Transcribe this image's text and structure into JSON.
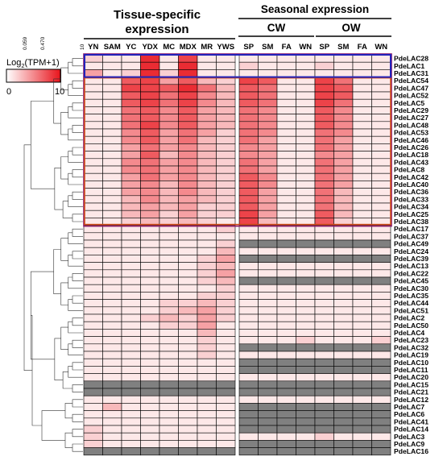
{
  "chart_data": {
    "type": "heatmap",
    "headers": {
      "tissue": [
        "Tissue-specific",
        "expression"
      ],
      "seasonal": "Seasonal expression",
      "cw": "CW",
      "ow": "OW"
    },
    "columns": [
      "YN",
      "SAM",
      "YC",
      "YDX",
      "MC",
      "MDX",
      "MR",
      "YWS",
      "SP",
      "SM",
      "FA",
      "WN",
      "SP",
      "SM",
      "FA",
      "WN"
    ],
    "rows": [
      "PdeLAC28",
      "PdeLAC1",
      "PdeLAC31",
      "PdeLAC54",
      "PdeLAC47",
      "PdeLAC52",
      "PdeLAC5",
      "PdeLAC29",
      "PdeLAC27",
      "PdeLAC48",
      "PdeLAC53",
      "PdeLAC46",
      "PdeLAC26",
      "PdeLAC18",
      "PdeLAC43",
      "PdeLAC8",
      "PdeLAC42",
      "PdeLAC40",
      "PdeLAC36",
      "PdeLAC33",
      "PdeLAC34",
      "PdeLAC25",
      "PdeLAC38",
      "PdeLAC17",
      "PdeLAC37",
      "PdeLAC49",
      "PdeLAC24",
      "PdeLAC39",
      "PdeLAC13",
      "PdeLAC22",
      "PdeLAC45",
      "PdeLAC30",
      "PdeLAC35",
      "PdeLAC44",
      "PdeLAC51",
      "PdeLAC2",
      "PdeLAC50",
      "PdeLAC4",
      "PdeLAC23",
      "PdeLAC32",
      "PdeLAC19",
      "PdeLAC10",
      "PdeLAC11",
      "PdeLAC20",
      "PdeLAC15",
      "PdeLAC21",
      "PdeLAC12",
      "PdeLAC7",
      "PdeLAC6",
      "PdeLAC41",
      "PdeLAC14",
      "PdeLAC3",
      "PdeLAC9",
      "PdeLAC16"
    ],
    "values": [
      [
        2,
        1,
        1,
        9,
        1,
        8,
        1,
        1,
        1,
        1,
        1,
        1,
        1,
        1,
        1,
        1
      ],
      [
        1,
        1,
        1,
        9,
        1,
        9,
        1,
        1,
        2,
        1,
        1,
        1,
        2,
        1,
        1,
        1
      ],
      [
        4,
        1,
        2,
        9,
        2,
        9,
        1,
        1,
        1,
        1,
        1,
        1,
        1,
        1,
        1,
        1
      ],
      [
        1,
        1,
        7,
        8,
        4,
        7,
        3,
        2,
        8,
        7,
        1,
        1,
        8,
        6,
        1,
        1
      ],
      [
        1,
        1,
        8,
        8,
        7,
        9,
        6,
        3,
        7,
        6,
        1,
        1,
        8,
        7,
        1,
        1
      ],
      [
        1,
        1,
        7,
        8,
        6,
        8,
        5,
        3,
        7,
        6,
        1,
        1,
        8,
        7,
        1,
        1
      ],
      [
        1,
        1,
        7,
        8,
        6,
        8,
        5,
        3,
        7,
        6,
        1,
        1,
        8,
        6,
        1,
        1
      ],
      [
        1,
        1,
        6,
        7,
        5,
        7,
        4,
        3,
        6,
        5,
        1,
        1,
        7,
        5,
        1,
        1
      ],
      [
        1,
        1,
        6,
        7,
        5,
        7,
        4,
        3,
        6,
        5,
        1,
        1,
        7,
        5,
        1,
        1
      ],
      [
        1,
        1,
        6,
        8,
        5,
        7,
        4,
        3,
        6,
        5,
        1,
        1,
        7,
        5,
        1,
        1
      ],
      [
        1,
        1,
        5,
        7,
        4,
        6,
        4,
        2,
        6,
        5,
        1,
        1,
        6,
        5,
        1,
        1
      ],
      [
        1,
        1,
        5,
        7,
        4,
        6,
        3,
        2,
        6,
        4,
        1,
        1,
        6,
        4,
        1,
        1
      ],
      [
        1,
        1,
        4,
        6,
        4,
        5,
        3,
        2,
        5,
        4,
        1,
        1,
        6,
        4,
        1,
        1
      ],
      [
        1,
        1,
        4,
        7,
        3,
        5,
        3,
        2,
        5,
        4,
        1,
        1,
        5,
        4,
        1,
        1
      ],
      [
        1,
        1,
        5,
        6,
        4,
        5,
        3,
        2,
        6,
        4,
        1,
        1,
        6,
        4,
        1,
        1
      ],
      [
        1,
        1,
        5,
        6,
        4,
        5,
        3,
        2,
        6,
        4,
        1,
        1,
        6,
        4,
        1,
        1
      ],
      [
        1,
        1,
        4,
        6,
        4,
        5,
        3,
        2,
        7,
        5,
        1,
        1,
        6,
        4,
        1,
        1
      ],
      [
        1,
        1,
        4,
        5,
        3,
        5,
        3,
        2,
        7,
        5,
        1,
        1,
        6,
        4,
        1,
        1
      ],
      [
        1,
        1,
        4,
        5,
        3,
        5,
        3,
        2,
        7,
        4,
        1,
        1,
        6,
        3,
        1,
        1
      ],
      [
        1,
        1,
        3,
        5,
        3,
        4,
        3,
        2,
        7,
        4,
        1,
        1,
        6,
        3,
        1,
        1
      ],
      [
        1,
        1,
        3,
        4,
        3,
        4,
        2,
        2,
        7,
        4,
        1,
        1,
        6,
        3,
        1,
        1
      ],
      [
        1,
        1,
        3,
        4,
        2,
        4,
        2,
        2,
        8,
        4,
        1,
        1,
        7,
        3,
        1,
        1
      ],
      [
        1,
        1,
        2,
        3,
        2,
        3,
        2,
        1,
        8,
        3,
        1,
        1,
        7,
        2,
        1,
        1
      ],
      [
        1,
        1,
        1,
        1,
        1,
        1,
        1,
        2,
        1,
        1,
        1,
        1,
        1,
        1,
        1,
        1
      ],
      [
        1,
        1,
        1,
        1,
        1,
        1,
        1,
        1,
        1,
        1,
        1,
        1,
        1,
        1,
        1,
        1
      ],
      [
        1,
        1,
        1,
        1,
        1,
        1,
        1,
        2,
        null,
        null,
        null,
        null,
        null,
        null,
        null,
        null
      ],
      [
        1,
        1,
        1,
        1,
        1,
        1,
        1,
        3,
        1,
        1,
        1,
        1,
        1,
        1,
        1,
        1
      ],
      [
        1,
        1,
        1,
        1,
        1,
        1,
        2,
        4,
        null,
        null,
        null,
        null,
        null,
        null,
        null,
        null
      ],
      [
        1,
        1,
        1,
        1,
        1,
        1,
        2,
        3,
        1,
        1,
        1,
        1,
        1,
        1,
        1,
        1
      ],
      [
        1,
        1,
        1,
        1,
        1,
        1,
        2,
        4,
        1,
        1,
        1,
        1,
        1,
        1,
        1,
        1
      ],
      [
        1,
        1,
        1,
        1,
        1,
        1,
        2,
        3,
        null,
        null,
        null,
        null,
        null,
        null,
        null,
        null
      ],
      [
        1,
        1,
        1,
        1,
        1,
        1,
        1,
        2,
        1,
        1,
        1,
        1,
        1,
        1,
        1,
        1
      ],
      [
        1,
        1,
        1,
        1,
        1,
        1,
        2,
        2,
        1,
        1,
        1,
        1,
        1,
        1,
        1,
        1
      ],
      [
        1,
        1,
        1,
        1,
        2,
        2,
        3,
        2,
        1,
        1,
        1,
        1,
        1,
        1,
        1,
        1
      ],
      [
        1,
        1,
        1,
        1,
        2,
        3,
        4,
        2,
        1,
        1,
        1,
        1,
        1,
        1,
        1,
        1
      ],
      [
        1,
        1,
        1,
        2,
        3,
        2,
        4,
        2,
        1,
        1,
        1,
        1,
        1,
        1,
        1,
        1
      ],
      [
        1,
        1,
        1,
        1,
        2,
        2,
        4,
        1,
        1,
        1,
        1,
        1,
        1,
        1,
        1,
        1
      ],
      [
        1,
        1,
        1,
        1,
        1,
        1,
        3,
        1,
        1,
        1,
        1,
        1,
        1,
        1,
        1,
        1
      ],
      [
        1,
        1,
        1,
        1,
        1,
        1,
        2,
        1,
        1,
        1,
        1,
        2,
        1,
        1,
        1,
        2
      ],
      [
        1,
        1,
        1,
        1,
        1,
        1,
        2,
        1,
        null,
        null,
        null,
        null,
        null,
        null,
        null,
        null
      ],
      [
        1,
        1,
        1,
        1,
        1,
        1,
        2,
        1,
        1,
        1,
        1,
        1,
        1,
        1,
        1,
        1
      ],
      [
        1,
        1,
        1,
        1,
        1,
        1,
        1,
        1,
        null,
        null,
        null,
        null,
        null,
        null,
        null,
        null
      ],
      [
        1,
        1,
        1,
        1,
        1,
        1,
        1,
        1,
        null,
        null,
        null,
        null,
        null,
        null,
        null,
        null
      ],
      [
        1,
        1,
        1,
        1,
        1,
        1,
        1,
        1,
        1,
        1,
        1,
        1,
        1,
        1,
        1,
        1
      ],
      [
        null,
        null,
        null,
        null,
        null,
        null,
        null,
        null,
        null,
        null,
        null,
        null,
        null,
        null,
        null,
        null
      ],
      [
        null,
        null,
        null,
        null,
        null,
        null,
        null,
        null,
        null,
        null,
        null,
        null,
        null,
        null,
        null,
        null
      ],
      [
        1,
        1,
        1,
        1,
        1,
        1,
        1,
        1,
        1,
        1,
        1,
        1,
        1,
        1,
        1,
        1
      ],
      [
        1,
        3,
        1,
        1,
        1,
        1,
        1,
        1,
        null,
        null,
        null,
        null,
        null,
        null,
        null,
        null
      ],
      [
        1,
        1,
        1,
        1,
        1,
        1,
        1,
        1,
        null,
        null,
        null,
        null,
        null,
        null,
        null,
        null
      ],
      [
        1,
        1,
        1,
        1,
        1,
        1,
        1,
        1,
        null,
        null,
        null,
        null,
        null,
        null,
        null,
        null
      ],
      [
        2,
        1,
        1,
        1,
        1,
        1,
        1,
        1,
        null,
        null,
        null,
        null,
        null,
        null,
        null,
        null
      ],
      [
        2,
        1,
        1,
        1,
        1,
        1,
        1,
        1,
        1,
        1,
        1,
        1,
        2,
        1,
        1,
        1
      ],
      [
        2,
        1,
        1,
        1,
        1,
        1,
        1,
        1,
        null,
        null,
        null,
        null,
        null,
        null,
        null,
        null
      ],
      [
        null,
        null,
        null,
        null,
        null,
        null,
        null,
        null,
        null,
        null,
        null,
        null,
        null,
        null,
        null,
        null
      ]
    ],
    "value_range": [
      0,
      10
    ],
    "legend": {
      "title_prefix": "Log",
      "title_sub": "2",
      "title_suffix": "(TPM+1)",
      "min_label": "0",
      "max_label": "10"
    },
    "dendrogram_ticks": [
      "0.059",
      "0.470",
      "10"
    ],
    "colors": {
      "low": "#ffffff",
      "high": "#e8141c",
      "missing": "#808080",
      "purple_box": "#8b1a6b",
      "blue_box": "#2222bb",
      "orange_box": "#d04a18"
    }
  }
}
